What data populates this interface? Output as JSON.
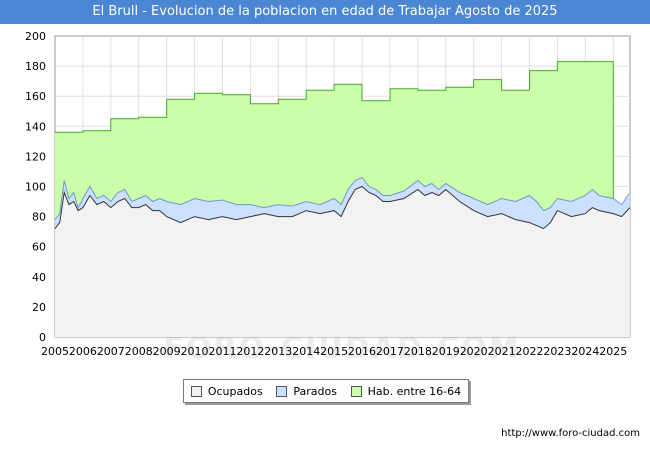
{
  "chart_data": {
    "type": "area",
    "title": "El Brull - Evolucion de la poblacion en edad de Trabajar Agosto de 2025",
    "xlabel": "",
    "ylabel": "",
    "ylim": [
      0,
      200
    ],
    "yticks": [
      0,
      20,
      40,
      60,
      80,
      100,
      120,
      140,
      160,
      180,
      200
    ],
    "xlim": [
      2005,
      2025.6
    ],
    "xticks": [
      "2005",
      "2006",
      "2007",
      "2008",
      "2009",
      "2010",
      "2011",
      "2012",
      "2013",
      "2014",
      "2015",
      "2016",
      "2017",
      "2018",
      "2019",
      "2020",
      "2021",
      "2022",
      "2023",
      "2024",
      "2025"
    ],
    "grid": true,
    "legend_position": "bottom",
    "watermark": "FORO-CIUDAD.COM",
    "source": "http://www.foro-ciudad.com",
    "series": [
      {
        "name": "Hab. entre 16-64",
        "color": "#ccffaa",
        "stroke": "#44aa22",
        "step": true,
        "x": [
          2005,
          2006,
          2007,
          2008,
          2009,
          2010,
          2011,
          2012,
          2013,
          2014,
          2015,
          2016,
          2017,
          2018,
          2019,
          2020,
          2021,
          2022,
          2023,
          2024
        ],
        "values": [
          136,
          137,
          145,
          146,
          158,
          162,
          161,
          155,
          158,
          164,
          168,
          157,
          165,
          164,
          166,
          171,
          164,
          177,
          183,
          183
        ]
      },
      {
        "name": "Parados",
        "color": "#cce0ff",
        "stroke": "#6a9ad0",
        "x": [
          2005.0,
          2005.17,
          2005.33,
          2005.5,
          2005.67,
          2005.83,
          2006.0,
          2006.25,
          2006.5,
          2006.75,
          2007.0,
          2007.25,
          2007.5,
          2007.75,
          2008.0,
          2008.25,
          2008.5,
          2008.75,
          2009.0,
          2009.5,
          2010.0,
          2010.5,
          2011.0,
          2011.5,
          2012.0,
          2012.5,
          2013.0,
          2013.5,
          2014.0,
          2014.5,
          2015.0,
          2015.25,
          2015.5,
          2015.75,
          2016.0,
          2016.25,
          2016.5,
          2016.75,
          2017.0,
          2017.5,
          2018.0,
          2018.25,
          2018.5,
          2018.75,
          2019.0,
          2019.5,
          2020.0,
          2020.5,
          2021.0,
          2021.5,
          2022.0,
          2022.25,
          2022.5,
          2022.75,
          2023.0,
          2023.5,
          2024.0,
          2024.25,
          2024.5,
          2025.0,
          2025.3,
          2025.6
        ],
        "values": [
          78,
          82,
          104,
          92,
          96,
          86,
          92,
          100,
          92,
          94,
          90,
          96,
          98,
          90,
          92,
          94,
          90,
          92,
          90,
          88,
          92,
          90,
          91,
          88,
          88,
          86,
          88,
          87,
          90,
          88,
          92,
          88,
          98,
          104,
          106,
          100,
          98,
          94,
          94,
          97,
          104,
          100,
          102,
          98,
          102,
          96,
          92,
          88,
          92,
          90,
          94,
          90,
          84,
          86,
          92,
          90,
          94,
          98,
          94,
          92,
          88,
          96
        ]
      },
      {
        "name": "Ocupados",
        "color": "#f2f2f2",
        "stroke": "#333333",
        "x": [
          2005.0,
          2005.17,
          2005.33,
          2005.5,
          2005.67,
          2005.83,
          2006.0,
          2006.25,
          2006.5,
          2006.75,
          2007.0,
          2007.25,
          2007.5,
          2007.75,
          2008.0,
          2008.25,
          2008.5,
          2008.75,
          2009.0,
          2009.5,
          2010.0,
          2010.5,
          2011.0,
          2011.5,
          2012.0,
          2012.5,
          2013.0,
          2013.5,
          2014.0,
          2014.5,
          2015.0,
          2015.25,
          2015.5,
          2015.75,
          2016.0,
          2016.25,
          2016.5,
          2016.75,
          2017.0,
          2017.5,
          2018.0,
          2018.25,
          2018.5,
          2018.75,
          2019.0,
          2019.5,
          2020.0,
          2020.5,
          2021.0,
          2021.5,
          2022.0,
          2022.25,
          2022.5,
          2022.75,
          2023.0,
          2023.5,
          2024.0,
          2024.25,
          2024.5,
          2025.0,
          2025.3,
          2025.6
        ],
        "values": [
          72,
          76,
          96,
          88,
          90,
          84,
          86,
          94,
          88,
          90,
          86,
          90,
          92,
          86,
          86,
          88,
          84,
          84,
          80,
          76,
          80,
          78,
          80,
          78,
          80,
          82,
          80,
          80,
          84,
          82,
          84,
          80,
          90,
          98,
          100,
          96,
          94,
          90,
          90,
          92,
          98,
          94,
          96,
          94,
          98,
          90,
          84,
          80,
          82,
          78,
          76,
          74,
          72,
          76,
          84,
          80,
          82,
          86,
          84,
          82,
          80,
          86
        ]
      }
    ]
  }
}
